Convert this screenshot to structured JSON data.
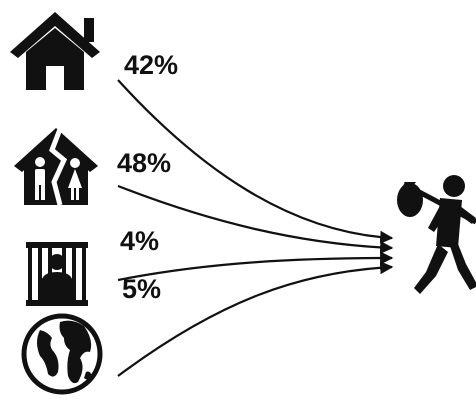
{
  "sources": [
    {
      "id": "home",
      "icon": "house-icon",
      "percent": 42,
      "label": "42%"
    },
    {
      "id": "divorce",
      "icon": "broken-family-icon",
      "percent": 48,
      "label": "48%"
    },
    {
      "id": "prison",
      "icon": "prisoner-icon",
      "percent": 4,
      "label": "4%"
    },
    {
      "id": "world",
      "icon": "globe-icon",
      "percent": 5,
      "label": "5%"
    }
  ],
  "target": {
    "icon": "runaway-with-bindle-icon"
  },
  "colors": {
    "ink": "#111111",
    "background": "#ffffff"
  }
}
